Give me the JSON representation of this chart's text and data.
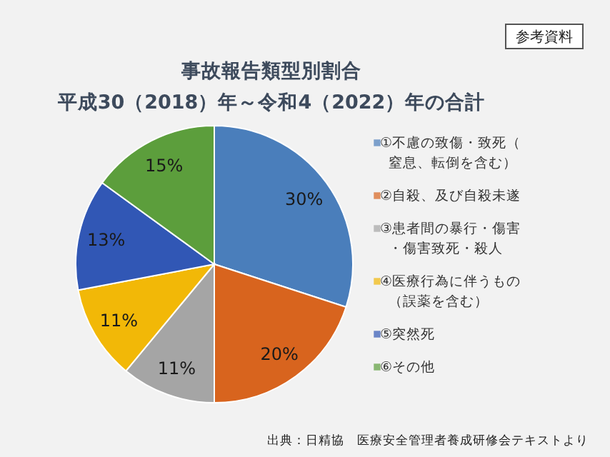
{
  "chart_data": {
    "type": "pie",
    "title": "事故報告類型別割合",
    "subtitle": "平成30（2018）年～令和4（2022）年の合計",
    "categories": [
      "①不慮の致傷・致死（窒息、転倒を含む）",
      "②自殺、及び自殺未遂",
      "③患者間の暴行・傷害・傷害致死・殺人",
      "④医療行為に伴うもの（誤薬を含む）",
      "⑤突然死",
      "⑥その他"
    ],
    "values": [
      30,
      20,
      11,
      11,
      13,
      15
    ],
    "value_labels": [
      "30%",
      "20%",
      "11%",
      "11%",
      "13%",
      "15%"
    ],
    "colors": [
      "#4a7ebb",
      "#d8641e",
      "#a5a5a5",
      "#f2b807",
      "#3157b5",
      "#5c9e3c"
    ],
    "legend": "right",
    "annotations": [
      "参考資料",
      "出典：日精協　医療安全管理者養成研修会テキストより"
    ]
  }
}
